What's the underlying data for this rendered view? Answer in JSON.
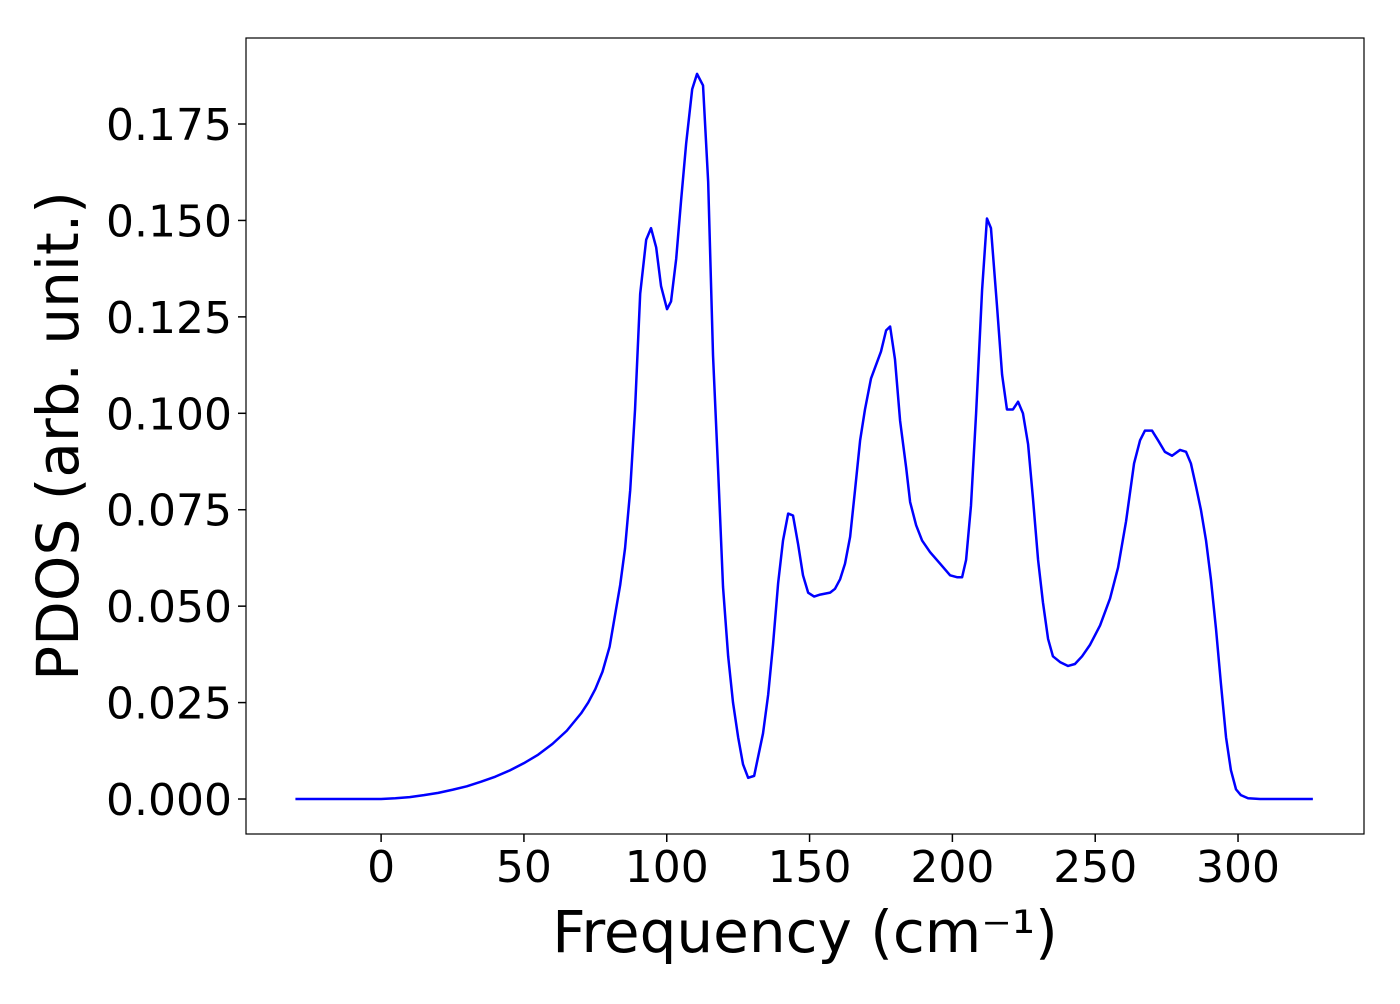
{
  "chart_data": {
    "type": "line",
    "xlabel": "Frequency (cm⁻¹)",
    "ylabel": "PDOS (arb. unit.)",
    "xlim": [
      -47.3,
      344.1
    ],
    "ylim": [
      -0.00907,
      0.1973
    ],
    "xticks": [
      0,
      50,
      100,
      150,
      200,
      250,
      300
    ],
    "yticks": [
      {
        "value": 0,
        "label": "0.000"
      },
      {
        "value": 0.025,
        "label": "0.025"
      },
      {
        "value": 0.05,
        "label": "0.050"
      },
      {
        "value": 0.075,
        "label": "0.075"
      },
      {
        "value": 0.1,
        "label": "0.100"
      },
      {
        "value": 0.125,
        "label": "0.125"
      },
      {
        "value": 0.15,
        "label": "0.150"
      },
      {
        "value": 0.175,
        "label": "0.175"
      }
    ],
    "series": [
      {
        "color": "#0000ff",
        "x": [
          -30,
          -20,
          -10,
          0,
          5,
          10,
          15,
          20,
          25,
          30,
          35,
          40,
          45,
          50,
          55,
          60,
          65,
          70,
          72.5,
          75,
          77.5,
          80,
          83.7,
          85.4,
          87.2,
          88.9,
          90.7,
          92.8,
          94.5,
          96.3,
          98,
          100.1,
          101.5,
          103.3,
          105,
          106.8,
          108.9,
          110.6,
          112.7,
          114.5,
          116.2,
          118,
          119.7,
          121.5,
          123.2,
          125,
          126.7,
          128.5,
          130.6,
          132,
          133.7,
          135.5,
          137.2,
          139,
          140.7,
          142.5,
          144.2,
          146,
          147.7,
          149.5,
          151.6,
          153.7,
          157.2,
          158.9,
          160.7,
          162.4,
          164.2,
          165.9,
          167.7,
          169.4,
          171.5,
          175,
          176.8,
          178.2,
          179.9,
          181.7,
          183.8,
          185.2,
          187.3,
          189.4,
          192.2,
          195.7,
          199.2,
          201.6,
          203.4,
          204.8,
          206.5,
          208.3,
          210.4,
          212.1,
          213.5,
          215.6,
          217.4,
          219.1,
          221.2,
          223,
          224.7,
          226.5,
          228.2,
          230,
          231.7,
          233.5,
          235.2,
          237.7,
          240.5,
          242.9,
          245.4,
          248.2,
          251.7,
          255.2,
          258,
          260.8,
          263.6,
          265.7,
          267.4,
          269.9,
          272,
          274.4,
          276.9,
          279.7,
          281.8,
          283.5,
          285.3,
          287,
          288.8,
          290.5,
          292.3,
          294,
          295.8,
          297.5,
          299.3,
          301,
          303.5,
          307.7,
          326.2
        ],
        "values": [
          0,
          0,
          0,
          0,
          0.0002,
          0.0005,
          0.001,
          0.0016,
          0.0024,
          0.0033,
          0.0045,
          0.0058,
          0.0074,
          0.0093,
          0.0115,
          0.0143,
          0.0177,
          0.0222,
          0.025,
          0.0285,
          0.033,
          0.0395,
          0.0555,
          0.065,
          0.08,
          0.101,
          0.131,
          0.145,
          0.148,
          0.143,
          0.133,
          0.127,
          0.129,
          0.14,
          0.155,
          0.17,
          0.184,
          0.188,
          0.185,
          0.16,
          0.115,
          0.085,
          0.055,
          0.037,
          0.025,
          0.016,
          0.009,
          0.0055,
          0.006,
          0.011,
          0.017,
          0.027,
          0.04,
          0.056,
          0.067,
          0.074,
          0.0735,
          0.066,
          0.058,
          0.0535,
          0.0525,
          0.053,
          0.0535,
          0.0545,
          0.057,
          0.061,
          0.068,
          0.08,
          0.093,
          0.101,
          0.109,
          0.116,
          0.1215,
          0.1225,
          0.114,
          0.098,
          0.086,
          0.077,
          0.071,
          0.067,
          0.064,
          0.061,
          0.058,
          0.0575,
          0.0575,
          0.062,
          0.076,
          0.1,
          0.132,
          0.1505,
          0.148,
          0.128,
          0.11,
          0.101,
          0.101,
          0.103,
          0.1,
          0.092,
          0.078,
          0.062,
          0.051,
          0.0415,
          0.037,
          0.0355,
          0.0345,
          0.035,
          0.037,
          0.04,
          0.045,
          0.052,
          0.06,
          0.072,
          0.087,
          0.093,
          0.0955,
          0.0955,
          0.093,
          0.09,
          0.089,
          0.0905,
          0.09,
          0.087,
          0.081,
          0.075,
          0.067,
          0.057,
          0.044,
          0.03,
          0.016,
          0.0075,
          0.0025,
          0.001,
          0.0002,
          0,
          0
        ]
      }
    ]
  }
}
